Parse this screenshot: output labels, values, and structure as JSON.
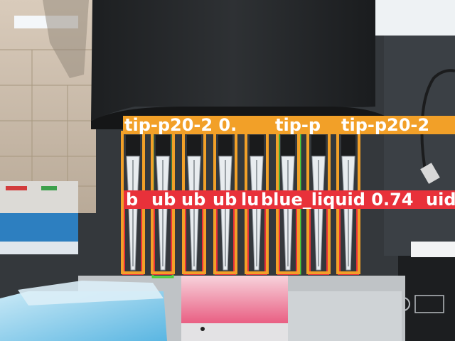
{
  "scene": {
    "description_label": "Lab scene: pipette head with eight pipette tips dipped into a reservoir, annotated with object-detection boxes"
  },
  "detections": {
    "tip_labels": [
      "tip-p20-2  0.",
      "tip-p",
      "tip-p20-2"
    ],
    "liquid_labels": [
      "b",
      "ub",
      "ub",
      "ub",
      "lu",
      "blue_liquid  0.74",
      "uid"
    ],
    "tip_color": "#f2a028",
    "liquid_color": "#e8313a",
    "secondary_color": "#4cd13a"
  }
}
